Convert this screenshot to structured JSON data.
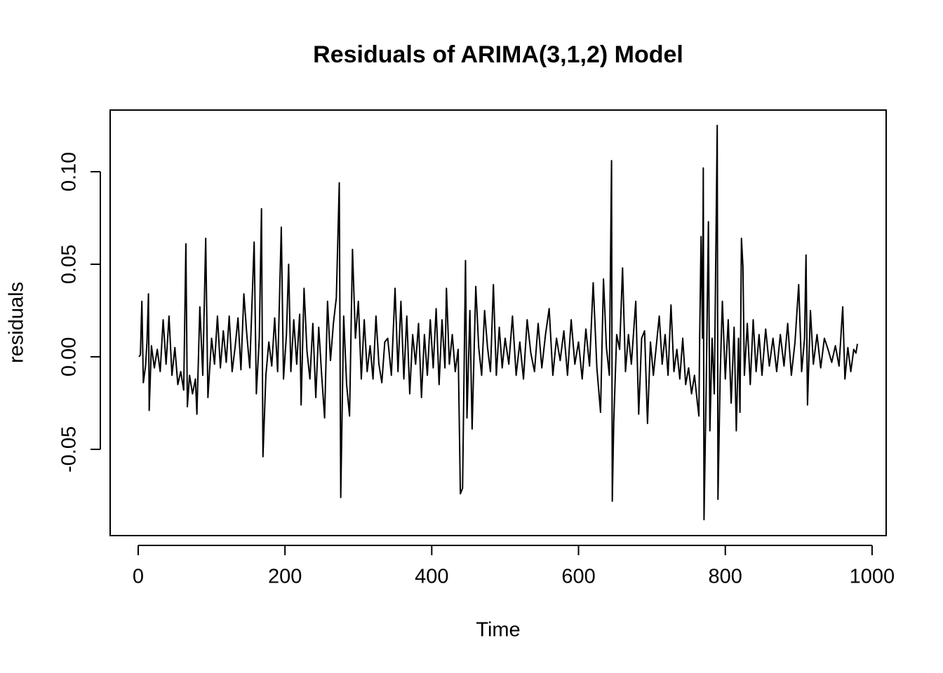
{
  "chart_data": {
    "type": "line",
    "title": "Residuals of ARIMA(3,1,2) Model",
    "x_label": "Time",
    "y_label": "residuals",
    "color": "#000000",
    "xlim": [
      -38.2,
      1019.2
    ],
    "ylim": [
      -0.0966,
      0.1333
    ],
    "xticks": [
      0,
      200,
      400,
      600,
      800,
      1000
    ],
    "yticks": [
      {
        "value": -0.05,
        "label": "-0.05"
      },
      {
        "value": 0,
        "label": "0.00"
      },
      {
        "value": 0.05,
        "label": "0.05"
      },
      {
        "value": 0.1,
        "label": "0.10"
      }
    ],
    "x": [
      1,
      3,
      5,
      7,
      10,
      12,
      14,
      15,
      18,
      22,
      26,
      30,
      34,
      38,
      42,
      46,
      50,
      54,
      58,
      62,
      65,
      67,
      70,
      74,
      78,
      80,
      84,
      88,
      92,
      95,
      100,
      104,
      108,
      112,
      116,
      120,
      124,
      128,
      132,
      136,
      140,
      144,
      148,
      152,
      158,
      161,
      165,
      168,
      170,
      174,
      178,
      182,
      186,
      190,
      195,
      198,
      202,
      205,
      208,
      212,
      216,
      220,
      222,
      226,
      230,
      234,
      238,
      242,
      246,
      250,
      254,
      258,
      262,
      266,
      270,
      274,
      276,
      280,
      284,
      288,
      292,
      296,
      300,
      304,
      308,
      312,
      316,
      320,
      324,
      328,
      332,
      336,
      340,
      345,
      350,
      354,
      358,
      362,
      366,
      370,
      374,
      378,
      382,
      386,
      390,
      394,
      398,
      402,
      406,
      410,
      414,
      418,
      420,
      424,
      428,
      432,
      436,
      439,
      442,
      446,
      448,
      452,
      455,
      460,
      464,
      468,
      472,
      476,
      480,
      484,
      488,
      492,
      496,
      500,
      505,
      510,
      515,
      520,
      525,
      530,
      535,
      540,
      545,
      550,
      555,
      560,
      565,
      570,
      575,
      580,
      585,
      590,
      595,
      600,
      605,
      610,
      615,
      620,
      625,
      630,
      634,
      638,
      642,
      645,
      646,
      648,
      652,
      656,
      660,
      664,
      668,
      672,
      678,
      682,
      686,
      690,
      694,
      698,
      702,
      706,
      710,
      714,
      718,
      722,
      726,
      730,
      734,
      738,
      742,
      746,
      750,
      754,
      758,
      762,
      764,
      765,
      767,
      769,
      770,
      771,
      774,
      777,
      779,
      782,
      785,
      789,
      790,
      793,
      796,
      800,
      804,
      808,
      812,
      815,
      818,
      820,
      822,
      824,
      826,
      830,
      834,
      838,
      842,
      846,
      850,
      855,
      860,
      865,
      870,
      875,
      880,
      885,
      890,
      895,
      900,
      904,
      908,
      910,
      912,
      916,
      920,
      925,
      930,
      935,
      940,
      945,
      950,
      955,
      960,
      963,
      967,
      971,
      975,
      978,
      980
    ],
    "values": [
      0.0,
      0.001,
      0.03,
      -0.014,
      -0.005,
      0.008,
      0.034,
      -0.029,
      0.006,
      -0.006,
      0.004,
      -0.008,
      0.02,
      -0.004,
      0.022,
      -0.01,
      0.005,
      -0.015,
      -0.008,
      -0.018,
      0.061,
      -0.027,
      -0.01,
      -0.02,
      -0.012,
      -0.031,
      0.027,
      -0.01,
      0.064,
      -0.022,
      0.01,
      -0.004,
      0.022,
      -0.006,
      0.014,
      -0.003,
      0.022,
      -0.008,
      0.005,
      0.021,
      -0.007,
      0.034,
      0.012,
      -0.006,
      0.062,
      -0.02,
      0.01,
      0.08,
      -0.054,
      -0.01,
      0.008,
      -0.005,
      0.021,
      -0.008,
      0.07,
      -0.012,
      0.012,
      0.05,
      -0.008,
      0.02,
      -0.004,
      0.023,
      -0.026,
      0.037,
      0.003,
      -0.012,
      0.018,
      -0.022,
      0.016,
      -0.01,
      -0.033,
      0.03,
      -0.002,
      0.018,
      0.032,
      0.094,
      -0.076,
      0.022,
      -0.015,
      -0.032,
      0.058,
      0.01,
      0.03,
      -0.012,
      0.02,
      -0.008,
      0.006,
      -0.012,
      0.022,
      -0.004,
      -0.014,
      0.008,
      0.01,
      -0.01,
      0.037,
      -0.008,
      0.03,
      -0.012,
      0.022,
      -0.02,
      0.012,
      -0.004,
      0.018,
      -0.022,
      0.012,
      -0.01,
      0.02,
      -0.006,
      0.026,
      -0.015,
      0.02,
      -0.006,
      0.037,
      -0.004,
      0.012,
      -0.008,
      0.004,
      -0.074,
      -0.071,
      0.052,
      -0.033,
      0.025,
      -0.039,
      0.038,
      0.005,
      -0.01,
      0.025,
      0.005,
      -0.008,
      0.039,
      -0.01,
      0.016,
      -0.006,
      0.01,
      -0.004,
      0.022,
      -0.01,
      0.008,
      -0.012,
      0.02,
      0.002,
      -0.008,
      0.018,
      -0.006,
      0.012,
      0.026,
      -0.01,
      0.01,
      -0.002,
      0.014,
      -0.01,
      0.02,
      -0.004,
      0.008,
      -0.012,
      0.015,
      -0.005,
      0.04,
      -0.006,
      -0.03,
      0.042,
      0.005,
      -0.01,
      0.106,
      -0.078,
      -0.035,
      0.012,
      0.004,
      0.048,
      -0.008,
      0.012,
      -0.004,
      0.03,
      -0.031,
      0.01,
      0.014,
      -0.036,
      0.008,
      -0.01,
      0.006,
      0.022,
      -0.004,
      0.012,
      -0.01,
      0.028,
      -0.008,
      0.004,
      -0.012,
      0.01,
      -0.015,
      -0.006,
      -0.02,
      -0.01,
      -0.025,
      -0.032,
      0.008,
      0.065,
      0.01,
      0.102,
      -0.088,
      -0.015,
      0.073,
      -0.04,
      0.01,
      -0.02,
      0.125,
      -0.077,
      -0.01,
      0.03,
      -0.012,
      0.02,
      -0.025,
      0.016,
      -0.04,
      0.01,
      -0.03,
      0.064,
      0.049,
      -0.01,
      0.018,
      -0.015,
      0.02,
      -0.008,
      0.012,
      -0.01,
      0.015,
      -0.005,
      0.01,
      -0.008,
      0.012,
      -0.005,
      0.018,
      -0.01,
      0.008,
      0.039,
      -0.008,
      0.01,
      0.055,
      -0.026,
      0.025,
      -0.004,
      0.012,
      -0.006,
      0.01,
      0.004,
      -0.003,
      0.006,
      -0.005,
      0.027,
      -0.012,
      0.005,
      -0.008,
      0.004,
      0.002,
      0.007
    ]
  }
}
